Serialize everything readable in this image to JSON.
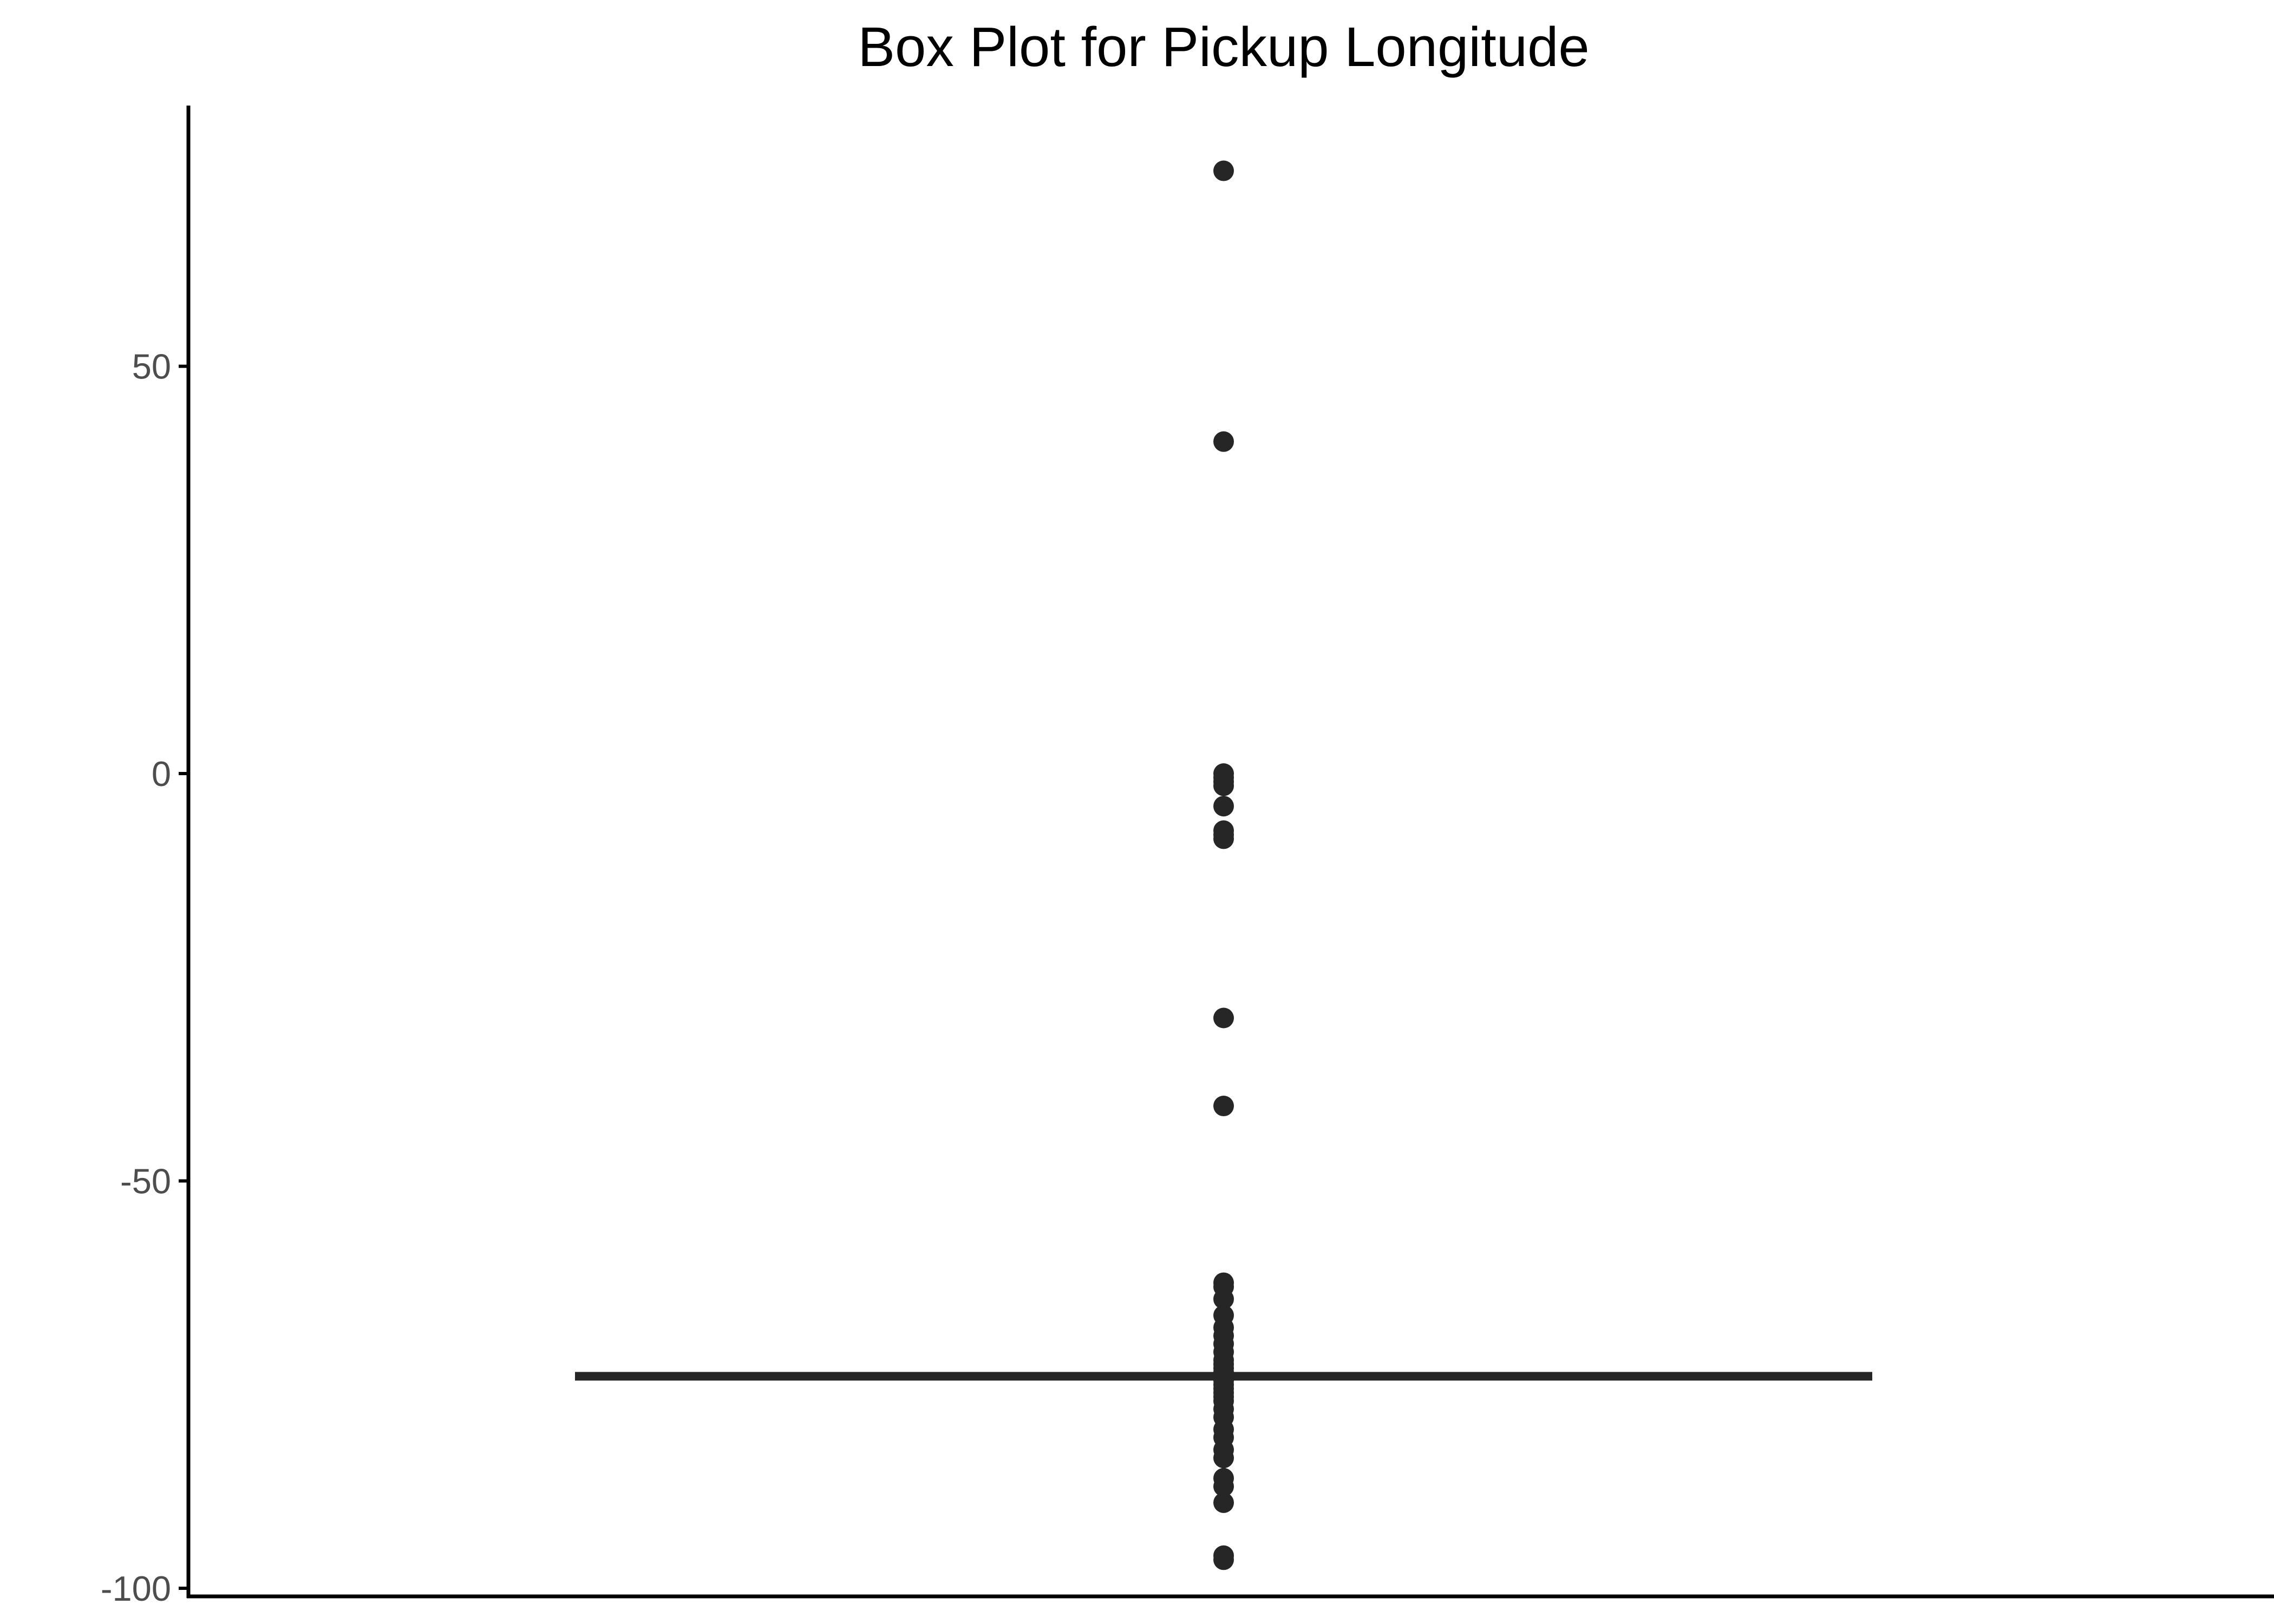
{
  "chart_data": {
    "type": "box",
    "title": "Box Plot for Pickup Longitude",
    "xlabel": "",
    "ylabel": "",
    "ylim": [
      -101,
      82
    ],
    "y_ticks": [
      50,
      0,
      -50,
      -100
    ],
    "y_tick_labels": [
      "50",
      "0",
      "-50",
      "-100"
    ],
    "grid": false,
    "legend": "none",
    "box": {
      "q1": -74.0,
      "median": -73.98,
      "q3": -73.96,
      "whisker_low": -74.05,
      "whisker_high": -73.91
    },
    "outliers": [
      73.99,
      40.75,
      0.0,
      -0.5,
      -1.0,
      -1.5,
      -4.0,
      -7.0,
      -7.5,
      -8.0,
      -30.0,
      -40.8,
      -62.5,
      -63.0,
      -64.5,
      -66.5,
      -68.0,
      -69.0,
      -70.0,
      -71.0,
      -72.0,
      -72.5,
      -73.0,
      -73.5,
      -74.5,
      -75.0,
      -75.5,
      -76.0,
      -76.5,
      -77.0,
      -78.0,
      -79.0,
      -80.5,
      -81.5,
      -83.0,
      -84.0,
      -86.5,
      -87.5,
      -89.5,
      -96.0,
      -96.5
    ],
    "colors": {
      "points": "#262626",
      "axis": "#000000",
      "tick_labels": "#4d4d4d"
    }
  }
}
